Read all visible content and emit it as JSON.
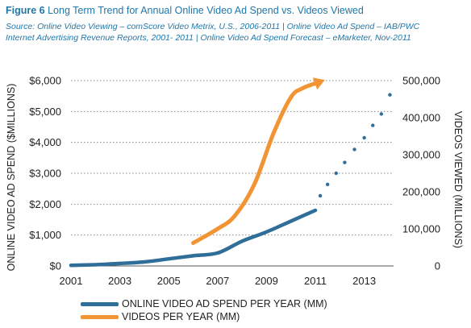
{
  "header": {
    "figure_number": "Figure 6",
    "title": "Long Term Trend for Annual Online Video Ad Spend vs. Videos Viewed",
    "source_line_1": "Source: Online Video Viewing – comScore Video Metrix, U.S., 2006-2011 | Online Video Ad Spend – IAB/PWC",
    "source_line_2": "Internet Advertising Revenue Reports, 2001- 2011 | Online Video Ad Spend Forecast – eMarketer, Nov-2011"
  },
  "legend": {
    "spend_label": "ONLINE VIDEO AD SPEND PER YEAR (MM)",
    "videos_label": "VIDEOS PER YEAR (MM)"
  },
  "colors": {
    "spend": "#2e6e99",
    "videos": "#f29433",
    "axis_text": "#222222",
    "grid": "#888888",
    "title": "#1f76a8"
  },
  "chart_data": {
    "type": "line",
    "xlabel": "",
    "ylabel_left": "ONLINE VIDEO AD SPEND ($MILLIONS)",
    "ylabel_right": "VIDEOS VIEWED (MILLIONS)",
    "xlim": [
      2001,
      2014.2
    ],
    "ylim_left": [
      0,
      6000
    ],
    "ylim_right": [
      0,
      500000
    ],
    "x_ticks": [
      "2001",
      "2003",
      "2005",
      "2007",
      "2009",
      "2011",
      "2013"
    ],
    "y_ticks_left": [
      "$0",
      "$1,000",
      "$2,000",
      "$3,000",
      "$4,000",
      "$5,000",
      "$6,000"
    ],
    "y_ticks_right": [
      "0",
      "100,000",
      "200,000",
      "300,000",
      "400,000",
      "500,000"
    ],
    "grid": "horizontal dotted",
    "series": [
      {
        "name": "ONLINE VIDEO AD SPEND PER YEAR (MM)",
        "axis": "left",
        "style": "solid",
        "x": [
          2001,
          2002,
          2003,
          2004,
          2005,
          2006,
          2007,
          2008,
          2009,
          2010,
          2011
        ],
        "y": [
          20,
          40,
          80,
          130,
          230,
          330,
          420,
          800,
          1100,
          1450,
          1800
        ]
      },
      {
        "name": "ONLINE VIDEO AD SPEND PER YEAR (MM)",
        "axis": "left",
        "style": "forecast-dots",
        "x": [
          2011.2,
          2011.5,
          2011.85,
          2012.2,
          2012.6,
          2013.0,
          2013.35,
          2013.7,
          2014.05
        ],
        "y": [
          2270,
          2640,
          3000,
          3350,
          3770,
          4150,
          4550,
          4920,
          5540
        ]
      },
      {
        "name": "VIDEOS PER YEAR (MM)",
        "axis": "right",
        "style": "solid-arrow",
        "x": [
          2006,
          2007,
          2007.7,
          2008.5,
          2009.3,
          2010,
          2010.5,
          2011.2
        ],
        "y": [
          62000,
          100000,
          135000,
          220000,
          360000,
          455000,
          480000,
          497000
        ]
      }
    ]
  }
}
